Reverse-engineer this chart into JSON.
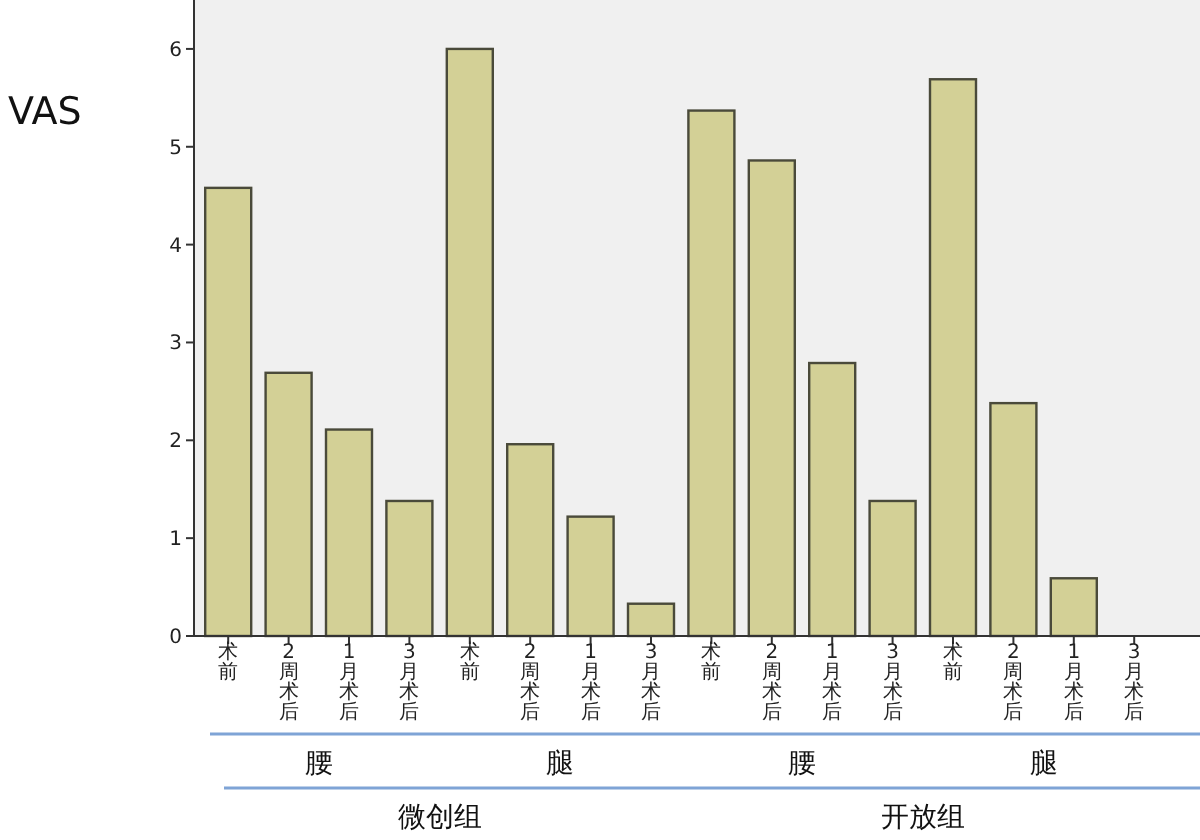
{
  "chart_data": {
    "type": "bar",
    "ylabel": "VAS",
    "categories": [
      "术前",
      "2周术后",
      "1月术后",
      "3月术后",
      "术前",
      "2周术后",
      "1月术后",
      "3月术后",
      "术前",
      "2周术后",
      "1月术后",
      "3月术后",
      "术前",
      "2周术后",
      "1月术后",
      "3月术后"
    ],
    "values": [
      4.58,
      2.69,
      2.11,
      1.38,
      6.0,
      1.96,
      1.22,
      0.33,
      5.37,
      4.86,
      2.79,
      1.38,
      5.69,
      2.38,
      0.59,
      0
    ],
    "color": "#d3d096",
    "ylim": [
      0,
      6.5
    ],
    "yticks": [
      0,
      1,
      2,
      3,
      4,
      5,
      6
    ],
    "annotations": [
      "腰",
      "腿",
      "腰",
      "腿",
      "微创组",
      "开放组"
    ]
  }
}
